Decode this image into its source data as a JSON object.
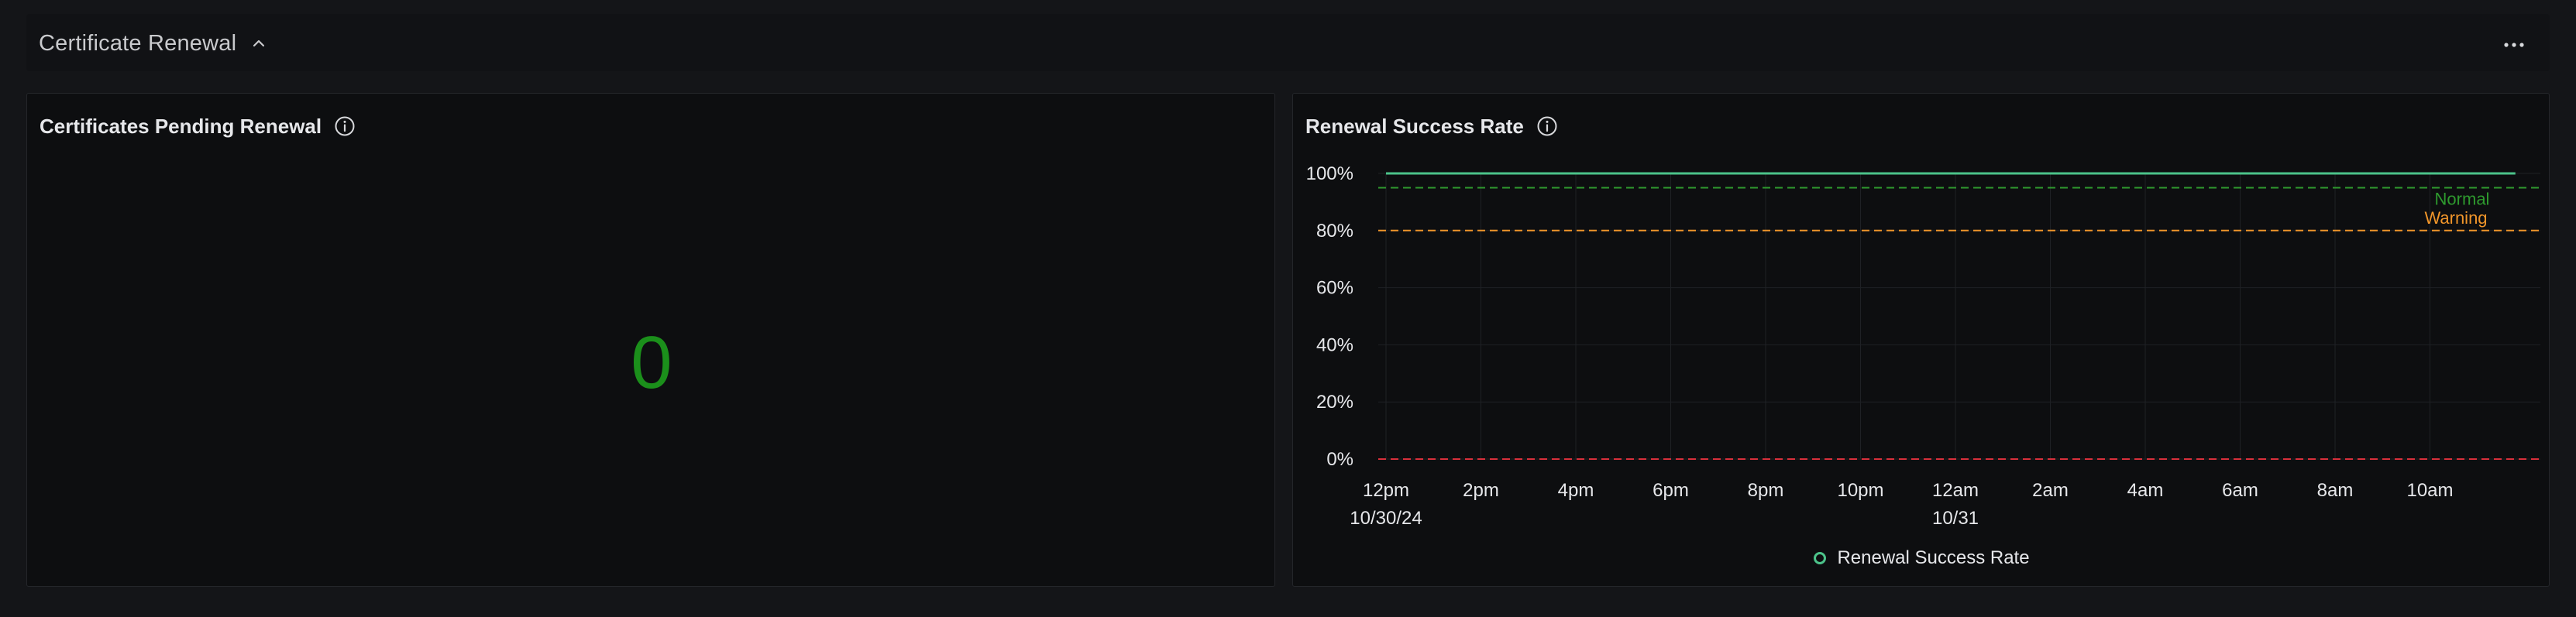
{
  "section": {
    "title": "Certificate Renewal",
    "collapse_icon": "chevron-up-icon",
    "menu_icon": "ellipsis-icon"
  },
  "pending_panel": {
    "title": "Certificates Pending Renewal",
    "info_icon": "info-icon",
    "value": "0",
    "value_color": "#1b8f1b"
  },
  "rate_panel": {
    "title": "Renewal Success Rate",
    "info_icon": "info-icon",
    "legend": {
      "label": "Renewal Success Rate",
      "color": "#4cc38a"
    }
  },
  "chart_data": {
    "type": "line",
    "title": "Renewal Success Rate",
    "x_ticks": [
      {
        "label": "12pm",
        "sublabel": "10/30/24"
      },
      {
        "label": "2pm",
        "sublabel": ""
      },
      {
        "label": "4pm",
        "sublabel": ""
      },
      {
        "label": "6pm",
        "sublabel": ""
      },
      {
        "label": "8pm",
        "sublabel": ""
      },
      {
        "label": "10pm",
        "sublabel": ""
      },
      {
        "label": "12am",
        "sublabel": "10/31"
      },
      {
        "label": "2am",
        "sublabel": ""
      },
      {
        "label": "4am",
        "sublabel": ""
      },
      {
        "label": "6am",
        "sublabel": ""
      },
      {
        "label": "8am",
        "sublabel": ""
      },
      {
        "label": "10am",
        "sublabel": ""
      }
    ],
    "y_ticks": [
      "0%",
      "20%",
      "40%",
      "60%",
      "80%",
      "100%"
    ],
    "ylim": [
      0,
      100
    ],
    "x_range_hours": [
      0,
      23.8
    ],
    "series": [
      {
        "name": "Renewal Success Rate",
        "color": "#4cc38a",
        "x_hours": [
          0,
          23.8
        ],
        "values": [
          100,
          100
        ]
      }
    ],
    "thresholds": [
      {
        "label": "Normal",
        "value": 95,
        "color": "#2e9a2e"
      },
      {
        "label": "Warning",
        "value": 80,
        "color": "#f0952a"
      },
      {
        "label": "",
        "value": 0,
        "color": "#d9303b"
      }
    ],
    "grid": true,
    "legend_position": "bottom-center"
  }
}
